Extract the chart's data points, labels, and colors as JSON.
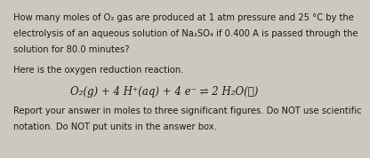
{
  "bg_color": "#cdc8be",
  "text_color": "#1a1a1a",
  "line1": "How many moles of O₂ gas are produced at 1 atm pressure and 25 °C by the",
  "line2": "electrolysis of an aqueous solution of Na₂SO₄ if 0.400 A is passed through the",
  "line3": "solution for 80.0 minutes?",
  "line4": "Here is the oxygen reduction reaction.",
  "equation": "O₂(g) + 4 H⁺(aq) + 4 e⁻ ⇌ 2 H₂O(ℓ)",
  "line5": "Report your answer in moles to three significant figures. Do NOT use scientific",
  "line6": "notation. Do NOT put units in the answer box.",
  "body_fontsize": 7.2,
  "eq_fontsize": 8.5
}
